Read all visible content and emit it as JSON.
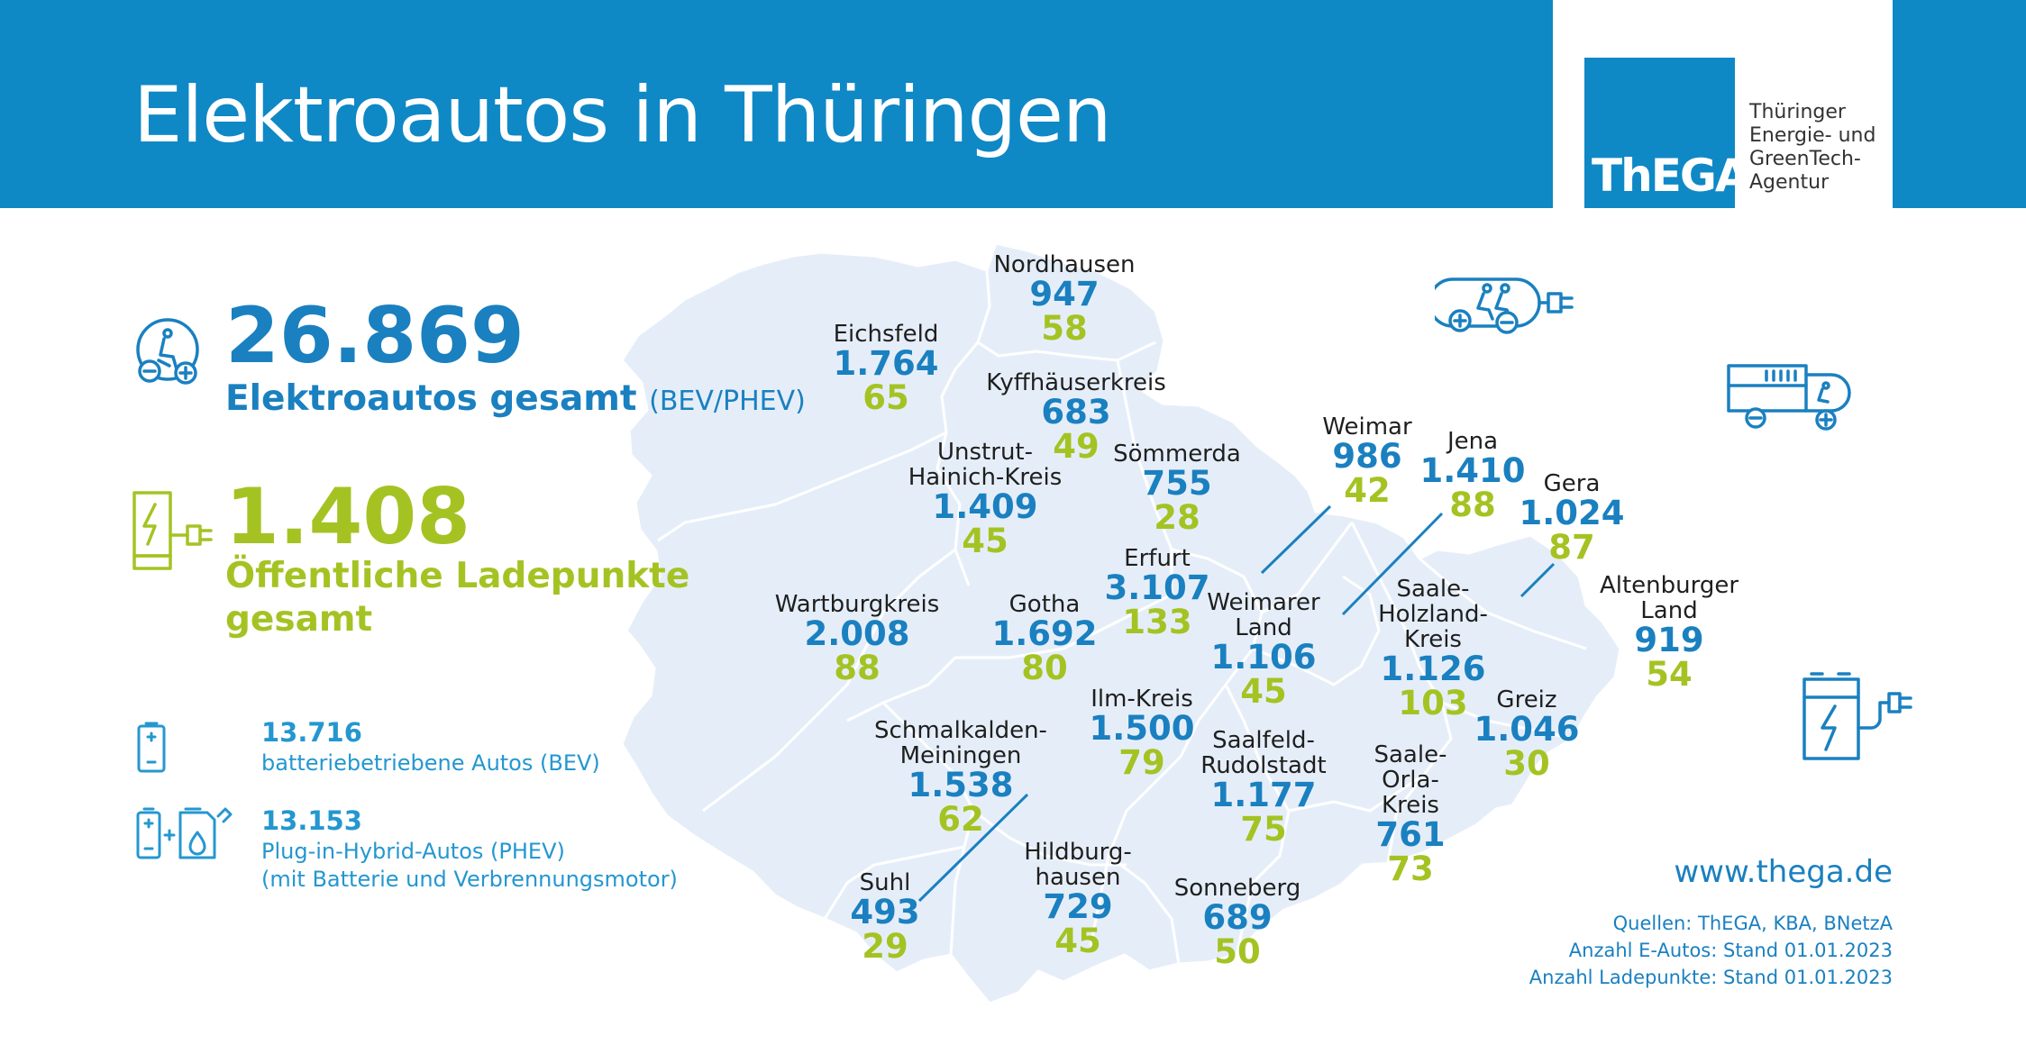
{
  "header": {
    "title": "Elektroautos in Thüringen",
    "logo_word": "ThEGA",
    "logo_tagline": [
      "Thüringer",
      "Energie- und",
      "GreenTech-",
      "Agentur"
    ]
  },
  "summary": {
    "cars_total": "26.869",
    "cars_label": "Elektroautos gesamt",
    "cars_label_suffix": "(BEV/PHEV)",
    "charging_total": "1.408",
    "charging_label": "Öffentliche Ladepunkte gesamt",
    "bev_value": "13.716",
    "bev_label": "batteriebetriebene Autos (BEV)",
    "phev_value": "13.153",
    "phev_label_1": "Plug-in-Hybrid-Autos (PHEV)",
    "phev_label_2": "(mit Batterie und Verbrennungsmotor)"
  },
  "regions": [
    {
      "name": "Nordhausen",
      "cars": "947",
      "charging": "58"
    },
    {
      "name": "Eichsfeld",
      "cars": "1.764",
      "charging": "65"
    },
    {
      "name": "Kyffhäuserkreis",
      "cars": "683",
      "charging": "49"
    },
    {
      "name": "Unstrut-Hainich-Kreis",
      "cars": "1.409",
      "charging": "45"
    },
    {
      "name": "Sömmerda",
      "cars": "755",
      "charging": "28"
    },
    {
      "name": "Weimar",
      "cars": "986",
      "charging": "42"
    },
    {
      "name": "Jena",
      "cars": "1.410",
      "charging": "88"
    },
    {
      "name": "Gera",
      "cars": "1.024",
      "charging": "87"
    },
    {
      "name": "Erfurt",
      "cars": "3.107",
      "charging": "133"
    },
    {
      "name": "Wartburgkreis",
      "cars": "2.008",
      "charging": "88"
    },
    {
      "name": "Gotha",
      "cars": "1.692",
      "charging": "80"
    },
    {
      "name": "Weimarer Land",
      "cars": "1.106",
      "charging": "45"
    },
    {
      "name": "Saale-Holzland-Kreis",
      "cars": "1.126",
      "charging": "103"
    },
    {
      "name": "Altenburger Land",
      "cars": "919",
      "charging": "54"
    },
    {
      "name": "Ilm-Kreis",
      "cars": "1.500",
      "charging": "79"
    },
    {
      "name": "Schmalkalden-Meiningen",
      "cars": "1.538",
      "charging": "62"
    },
    {
      "name": "Saalfeld-Rudolstadt",
      "cars": "1.177",
      "charging": "75"
    },
    {
      "name": "Greiz",
      "cars": "1.046",
      "charging": "30"
    },
    {
      "name": "Saale-Orla-Kreis",
      "cars": "761",
      "charging": "73"
    },
    {
      "name": "Suhl",
      "cars": "493",
      "charging": "29"
    },
    {
      "name": "Hildburghausen",
      "cars": "729",
      "charging": "45"
    },
    {
      "name": "Sonneberg",
      "cars": "689",
      "charging": "50"
    }
  ],
  "regions_display": {
    "nordhausen": [
      "Nordhausen"
    ],
    "eichsfeld": [
      "Eichsfeld"
    ],
    "kyffhaeuser": [
      "Kyffhäuserkreis"
    ],
    "unstrut": [
      "Unstrut-",
      "Hainich-Kreis"
    ],
    "soemmerda": [
      "Sömmerda"
    ],
    "weimar": [
      "Weimar"
    ],
    "jena": [
      "Jena"
    ],
    "gera": [
      "Gera"
    ],
    "erfurt": [
      "Erfurt"
    ],
    "wartburg": [
      "Wartburgkreis"
    ],
    "gotha": [
      "Gotha"
    ],
    "weimarer_land": [
      "Weimarer",
      "Land"
    ],
    "saale_holzland": [
      "Saale-",
      "Holzland-",
      "Kreis"
    ],
    "altenburger": [
      "Altenburger",
      "Land"
    ],
    "ilm": [
      "Ilm-Kreis"
    ],
    "schmalkalden": [
      "Schmalkalden-",
      "Meiningen"
    ],
    "saalfeld": [
      "Saalfeld-",
      "Rudolstadt"
    ],
    "greiz": [
      "Greiz"
    ],
    "saale_orla": [
      "Saale-",
      "Orla-",
      "Kreis"
    ],
    "suhl": [
      "Suhl"
    ],
    "hildburghausen": [
      "Hildburg-",
      "hausen"
    ],
    "sonneberg": [
      "Sonneberg"
    ]
  },
  "footer": {
    "website": "www.thega.de",
    "source_1": "Quellen: ThEGA, KBA, BNetzA",
    "source_2": "Anzahl E-Autos: Stand 01.01.2023",
    "source_3": "Anzahl Ladepunkte: Stand 01.01.2023"
  },
  "colors": {
    "brand_blue": "#0f88c6",
    "cars_blue": "#1a80c0",
    "charging_green": "#a4c323",
    "map_fill": "#e5eef8"
  },
  "icons": [
    "car-icon",
    "charging-station-icon",
    "battery-icon",
    "battery-plus-fuel-icon",
    "electric-car-plug-icon",
    "electric-truck-icon",
    "charging-plug-icon"
  ]
}
